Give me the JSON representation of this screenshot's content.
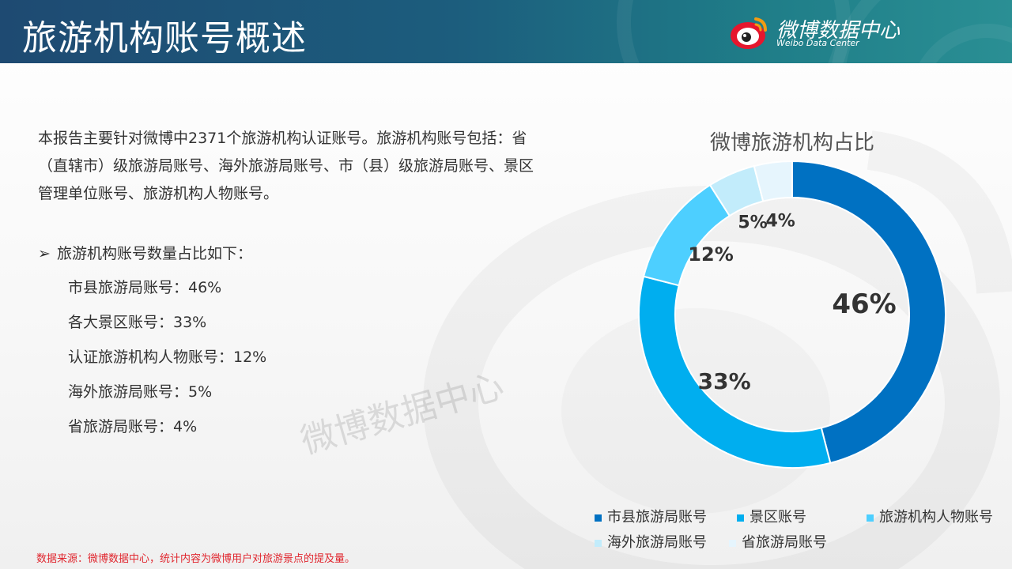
{
  "header": {
    "title": "旅游机构账号概述",
    "brand_name": "微博数据中心",
    "brand_sub": "Weibo Data Center",
    "colors": {
      "start": "#1e4a72",
      "end": "#2a8f94"
    }
  },
  "intro": {
    "text": "本报告主要针对微博中2371个旅游机构认证账号。旅游机构账号包括：省（直辖市）级旅游局账号、海外旅游局账号、市（县）级旅游局账号、景区管理单位账号、旅游机构人物账号。",
    "bullet_icon": "arrow-right-icon",
    "bullet_arrow": "➢",
    "bullet_heading": "旅游机构账号数量占比如下：",
    "items": [
      "市县旅游局账号：46%",
      "各大景区账号：33%",
      "认证旅游机构人物账号：12%",
      "海外旅游局账号：5%",
      "省旅游局账号：4%"
    ]
  },
  "watermark": "微博数据中心",
  "chart_data": {
    "type": "pie",
    "style": "donut",
    "title": "微博旅游机构占比",
    "categories": [
      "市县旅游局账号",
      "景区账号",
      "旅游机构人物账号",
      "海外旅游局账号",
      "省旅游局账号"
    ],
    "values": [
      46,
      33,
      12,
      5,
      4
    ],
    "labels": [
      "46%",
      "33%",
      "12%",
      "5%",
      "4%"
    ],
    "colors": [
      "#0071c2",
      "#00aeef",
      "#4dcfff",
      "#c2ecfb",
      "#e6f5fd"
    ],
    "legend_placement": "bottom"
  },
  "footnote": "数据来源：微博数据中心，统计内容为微博用户对旅游景点的提及量。"
}
